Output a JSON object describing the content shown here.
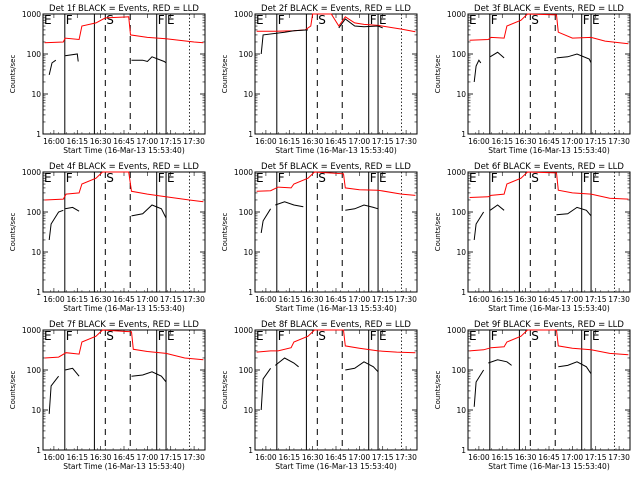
{
  "chart_data": {
    "type": "line",
    "yscale": "log",
    "ylim": [
      1,
      1000
    ],
    "y_ticks": [
      "1",
      "10",
      "100",
      "1000"
    ],
    "ylabel": "Counts/sec",
    "xlabel": "Start Time (16-Mar-13 15:53:40)",
    "xlim": [
      "15:53",
      "17:37"
    ],
    "x_ticks": [
      "16:00",
      "16:15",
      "16:30",
      "16:45",
      "17:00",
      "17:15",
      "17:30"
    ],
    "series_colors": {
      "events": "#000000",
      "lld": "#ff0000"
    },
    "markers": [
      {
        "time": "15:53",
        "style": "dotted",
        "label": "E"
      },
      {
        "time": "16:07",
        "style": "solid",
        "label": "F"
      },
      {
        "time": "16:26",
        "style": "solid",
        "label": ""
      },
      {
        "time": "16:33",
        "style": "dashed",
        "label": "S"
      },
      {
        "time": "16:49",
        "style": "dashed",
        "label": ""
      },
      {
        "time": "17:06",
        "style": "solid",
        "label": "F"
      },
      {
        "time": "17:12",
        "style": "solid",
        "label": "E"
      },
      {
        "time": "17:27",
        "style": "dotted",
        "label": ""
      }
    ],
    "panels": [
      {
        "title": "Det 1f BLACK = Events, RED = LLD",
        "lld": [
          [
            15.9,
            190
          ],
          [
            16.1,
            200
          ],
          [
            16.12,
            250
          ],
          [
            16.27,
            230
          ],
          [
            16.3,
            500
          ],
          [
            16.45,
            600
          ],
          [
            16.55,
            800
          ],
          [
            16.8,
            850
          ],
          [
            16.82,
            300
          ],
          [
            17.0,
            260
          ],
          [
            17.2,
            240
          ],
          [
            17.5,
            200
          ],
          [
            17.6,
            190
          ]
        ],
        "events": [
          [
            [
              15.95,
              30
            ],
            [
              15.98,
              60
            ],
            [
              16.02,
              70
            ]
          ],
          [
            [
              16.12,
              90
            ],
            [
              16.25,
              100
            ],
            [
              16.26,
              65
            ]
          ],
          [
            [
              16.83,
              70
            ],
            [
              16.95,
              70
            ],
            [
              17.0,
              65
            ],
            [
              17.05,
              85
            ],
            [
              17.18,
              65
            ],
            [
              17.2,
              60
            ]
          ]
        ]
      },
      {
        "title": "Det 2f BLACK = Events, RED = LLD",
        "lld": [
          [
            15.9,
            370
          ],
          [
            16.1,
            370
          ],
          [
            16.3,
            380
          ],
          [
            16.42,
            400
          ],
          [
            16.48,
            500
          ],
          [
            16.5,
            1000
          ],
          [
            16.7,
            1000
          ],
          [
            16.78,
            500
          ],
          [
            16.85,
            850
          ],
          [
            16.95,
            600
          ],
          [
            17.05,
            550
          ],
          [
            17.2,
            520
          ],
          [
            17.45,
            420
          ],
          [
            17.6,
            360
          ]
        ],
        "events": [
          [
            [
              15.95,
              100
            ],
            [
              15.97,
              300
            ],
            [
              16.2,
              350
            ],
            [
              16.3,
              380
            ],
            [
              16.45,
              400
            ]
          ],
          [
            [
              16.78,
              450
            ],
            [
              16.85,
              750
            ],
            [
              16.95,
              500
            ],
            [
              17.05,
              480
            ],
            [
              17.2,
              500
            ],
            [
              17.25,
              450
            ]
          ]
        ]
      },
      {
        "title": "Det 3f BLACK = Events, RED = LLD",
        "lld": [
          [
            15.9,
            220
          ],
          [
            16.1,
            230
          ],
          [
            16.13,
            260
          ],
          [
            16.27,
            250
          ],
          [
            16.3,
            500
          ],
          [
            16.45,
            700
          ],
          [
            16.52,
            1000
          ],
          [
            16.83,
            950
          ],
          [
            16.85,
            350
          ],
          [
            17.0,
            250
          ],
          [
            17.2,
            260
          ],
          [
            17.35,
            210
          ],
          [
            17.6,
            180
          ]
        ],
        "events": [
          [
            [
              15.95,
              20
            ],
            [
              15.97,
              50
            ],
            [
              16.0,
              70
            ],
            [
              16.02,
              60
            ]
          ],
          [
            [
              16.12,
              85
            ],
            [
              16.2,
              110
            ],
            [
              16.27,
              80
            ]
          ],
          [
            [
              16.83,
              80
            ],
            [
              16.95,
              85
            ],
            [
              17.05,
              100
            ],
            [
              17.18,
              75
            ],
            [
              17.2,
              60
            ]
          ]
        ]
      },
      {
        "title": "Det 4f BLACK = Events, RED = LLD",
        "lld": [
          [
            15.9,
            200
          ],
          [
            16.1,
            210
          ],
          [
            16.13,
            280
          ],
          [
            16.27,
            300
          ],
          [
            16.3,
            500
          ],
          [
            16.45,
            700
          ],
          [
            16.52,
            1000
          ],
          [
            16.8,
            1000
          ],
          [
            16.83,
            330
          ],
          [
            17.0,
            280
          ],
          [
            17.15,
            250
          ],
          [
            17.45,
            200
          ],
          [
            17.6,
            180
          ]
        ],
        "events": [
          [
            [
              15.95,
              20
            ],
            [
              15.97,
              50
            ],
            [
              16.05,
              100
            ],
            [
              16.1,
              110
            ]
          ],
          [
            [
              16.12,
              120
            ],
            [
              16.2,
              130
            ],
            [
              16.27,
              105
            ]
          ],
          [
            [
              16.83,
              80
            ],
            [
              16.95,
              90
            ],
            [
              17.05,
              150
            ],
            [
              17.15,
              120
            ],
            [
              17.2,
              70
            ]
          ]
        ]
      },
      {
        "title": "Det 5f BLACK = Events, RED = LLD",
        "lld": [
          [
            15.9,
            330
          ],
          [
            16.05,
            340
          ],
          [
            16.13,
            420
          ],
          [
            16.27,
            400
          ],
          [
            16.3,
            500
          ],
          [
            16.45,
            700
          ],
          [
            16.52,
            1000
          ],
          [
            16.83,
            900
          ],
          [
            16.85,
            400
          ],
          [
            17.0,
            360
          ],
          [
            17.2,
            350
          ],
          [
            17.45,
            280
          ],
          [
            17.6,
            260
          ]
        ],
        "events": [
          [
            [
              15.95,
              30
            ],
            [
              15.97,
              60
            ],
            [
              16.05,
              120
            ]
          ],
          [
            [
              16.1,
              150
            ],
            [
              16.2,
              180
            ],
            [
              16.3,
              150
            ],
            [
              16.4,
              135
            ]
          ],
          [
            [
              16.85,
              110
            ],
            [
              16.95,
              120
            ],
            [
              17.05,
              150
            ],
            [
              17.15,
              130
            ],
            [
              17.2,
              120
            ]
          ]
        ]
      },
      {
        "title": "Det 6f BLACK = Events, RED = LLD",
        "lld": [
          [
            15.9,
            230
          ],
          [
            16.1,
            240
          ],
          [
            16.13,
            260
          ],
          [
            16.27,
            280
          ],
          [
            16.3,
            500
          ],
          [
            16.45,
            700
          ],
          [
            16.52,
            1000
          ],
          [
            16.83,
            950
          ],
          [
            16.85,
            350
          ],
          [
            17.0,
            300
          ],
          [
            17.2,
            280
          ],
          [
            17.4,
            220
          ],
          [
            17.6,
            210
          ]
        ],
        "events": [
          [
            [
              15.95,
              20
            ],
            [
              15.97,
              50
            ],
            [
              16.05,
              100
            ]
          ],
          [
            [
              16.12,
              110
            ],
            [
              16.2,
              150
            ],
            [
              16.27,
              110
            ]
          ],
          [
            [
              16.83,
              85
            ],
            [
              16.95,
              90
            ],
            [
              17.05,
              130
            ],
            [
              17.15,
              110
            ],
            [
              17.2,
              80
            ]
          ]
        ]
      },
      {
        "title": "Det 7f BLACK = Events, RED = LLD",
        "lld": [
          [
            15.9,
            200
          ],
          [
            16.05,
            210
          ],
          [
            16.13,
            270
          ],
          [
            16.27,
            250
          ],
          [
            16.3,
            500
          ],
          [
            16.45,
            700
          ],
          [
            16.52,
            1000
          ],
          [
            16.83,
            900
          ],
          [
            16.85,
            330
          ],
          [
            17.0,
            290
          ],
          [
            17.2,
            260
          ],
          [
            17.4,
            200
          ],
          [
            17.6,
            180
          ]
        ],
        "events": [
          [
            [
              15.95,
              8
            ],
            [
              15.97,
              40
            ],
            [
              16.05,
              70
            ]
          ],
          [
            [
              16.12,
              100
            ],
            [
              16.2,
              110
            ],
            [
              16.27,
              70
            ]
          ],
          [
            [
              16.83,
              70
            ],
            [
              16.95,
              75
            ],
            [
              17.05,
              90
            ],
            [
              17.15,
              70
            ],
            [
              17.2,
              50
            ]
          ]
        ]
      },
      {
        "title": "Det 8f BLACK = Events, RED = LLD",
        "lld": [
          [
            15.9,
            280
          ],
          [
            16.05,
            300
          ],
          [
            16.13,
            300
          ],
          [
            16.27,
            360
          ],
          [
            16.3,
            500
          ],
          [
            16.45,
            700
          ],
          [
            16.52,
            1000
          ],
          [
            16.83,
            1000
          ],
          [
            16.85,
            400
          ],
          [
            17.0,
            350
          ],
          [
            17.2,
            300
          ],
          [
            17.4,
            280
          ],
          [
            17.6,
            270
          ]
        ],
        "events": [
          [
            [
              15.95,
              10
            ],
            [
              15.97,
              60
            ],
            [
              16.05,
              110
            ]
          ],
          [
            [
              16.1,
              130
            ],
            [
              16.2,
              200
            ],
            [
              16.3,
              150
            ],
            [
              16.35,
              120
            ]
          ],
          [
            [
              16.85,
              100
            ],
            [
              16.95,
              110
            ],
            [
              17.05,
              160
            ],
            [
              17.15,
              120
            ],
            [
              17.2,
              90
            ]
          ]
        ]
      },
      {
        "title": "Det 9f BLACK = Events, RED = LLD",
        "lld": [
          [
            15.9,
            300
          ],
          [
            16.05,
            320
          ],
          [
            16.13,
            360
          ],
          [
            16.27,
            380
          ],
          [
            16.3,
            500
          ],
          [
            16.45,
            700
          ],
          [
            16.52,
            1000
          ],
          [
            16.83,
            1000
          ],
          [
            16.85,
            400
          ],
          [
            17.0,
            350
          ],
          [
            17.2,
            320
          ],
          [
            17.4,
            260
          ],
          [
            17.6,
            240
          ]
        ],
        "events": [
          [
            [
              15.95,
              12
            ],
            [
              15.97,
              50
            ],
            [
              16.05,
              100
            ]
          ],
          [
            [
              16.1,
              150
            ],
            [
              16.2,
              180
            ],
            [
              16.3,
              160
            ],
            [
              16.35,
              130
            ]
          ],
          [
            [
              16.85,
              120
            ],
            [
              16.95,
              130
            ],
            [
              17.05,
              160
            ],
            [
              17.15,
              120
            ],
            [
              17.2,
              80
            ]
          ]
        ]
      }
    ]
  }
}
